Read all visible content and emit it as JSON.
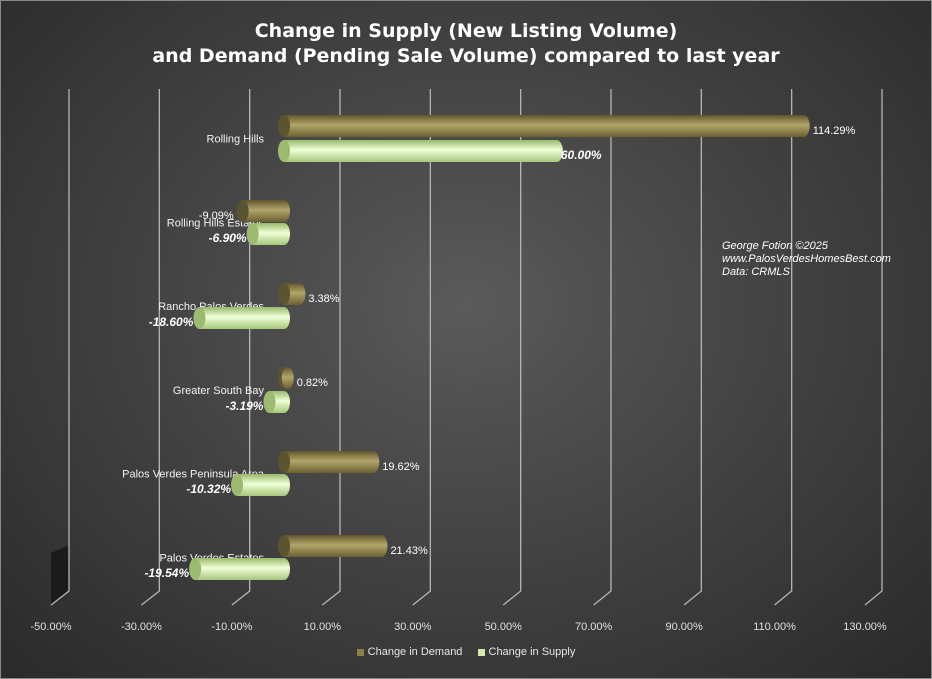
{
  "chart_data": {
    "type": "bar",
    "orientation": "horizontal",
    "title": [
      "Change in Supply (New Listing Volume)",
      "and Demand (Pending Sale Volume) compared to last year"
    ],
    "categories": [
      "Rolling Hills",
      "Rolling Hills Estates",
      "Rancho Palos Verdes",
      "Greater South Bay",
      "Palos Verdes Peninsula Area",
      "Palos Verdes Estates"
    ],
    "series": [
      {
        "name": "Change in Demand",
        "values": [
          114.29,
          -9.09,
          3.38,
          0.82,
          19.62,
          21.43
        ],
        "labels": [
          "114.29%",
          "-9.09%",
          "3.38%",
          "0.82%",
          "19.62%",
          "21.43%"
        ],
        "color": "#8d8149"
      },
      {
        "name": "Change in Supply",
        "values": [
          60.0,
          -6.9,
          -18.6,
          -3.19,
          -10.32,
          -19.54
        ],
        "labels": [
          "60.00%",
          "-6.90%",
          "-18.60%",
          "-3.19%",
          "-10.32%",
          "-19.54%"
        ],
        "color": "#d3eaa8"
      }
    ],
    "xlim": [
      -50,
      130
    ],
    "x_ticks": [
      -50,
      -30,
      -10,
      10,
      30,
      50,
      70,
      90,
      110,
      130
    ],
    "x_tick_labels": [
      "-50.00%",
      "-30.00%",
      "-10.00%",
      "10.00%",
      "30.00%",
      "50.00%",
      "70.00%",
      "90.00%",
      "110.00%",
      "130.00%"
    ],
    "grid": true,
    "legend_position": "bottom"
  },
  "credits": [
    "George Fotion ©2025",
    "www.PalosVerdesHomesBest.com",
    "Data: CRMLS"
  ],
  "colors": {
    "demand": "#8d8149",
    "supply": "#d3eaa8",
    "grid": "#b5b5b5",
    "text": "#ffffff"
  }
}
